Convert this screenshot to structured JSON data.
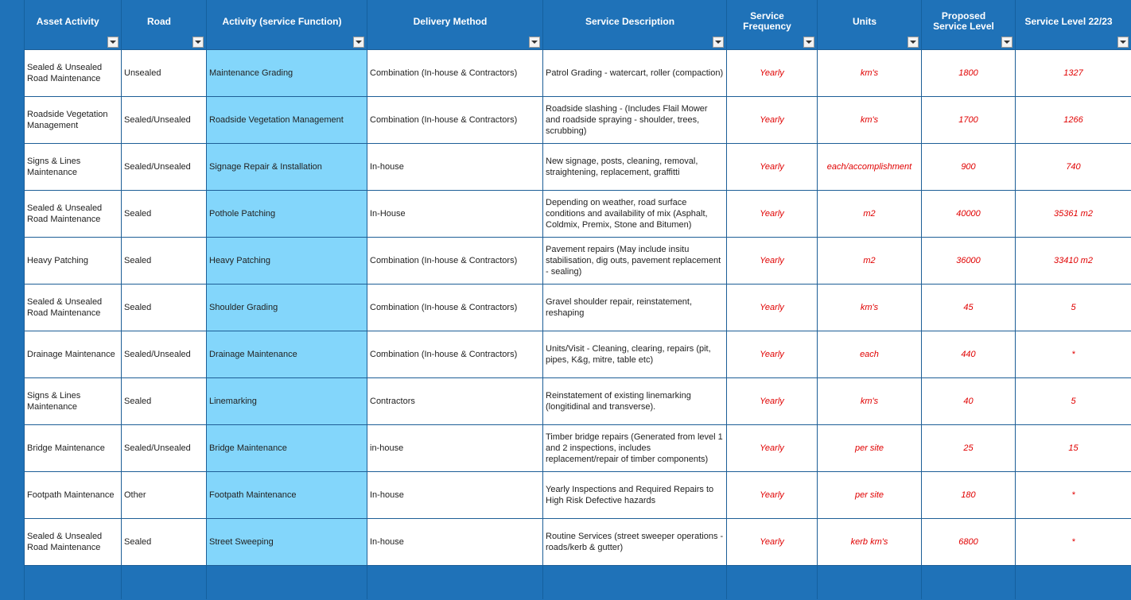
{
  "headers": [
    "Asset Activity",
    "Road",
    "Activity (service Function)",
    "Delivery Method",
    "Service Description",
    "Service Frequency",
    "Units",
    "Proposed Service Level",
    "Service Level 22/23"
  ],
  "rows": [
    {
      "asset": "Sealed & Unsealed Road Maintenance",
      "road": "Unsealed",
      "activity": "Maintenance Grading",
      "delivery": "Combination (In-house & Contractors)",
      "description": "Patrol Grading - watercart, roller (compaction)",
      "frequency": "Yearly",
      "units": "km's",
      "proposed": "1800",
      "level": "1327"
    },
    {
      "asset": "Roadside Vegetation Management",
      "road": "Sealed/Unsealed",
      "activity": "Roadside Vegetation Management",
      "delivery": "Combination (In-house & Contractors)",
      "description": "Roadside slashing - (Includes Flail Mower and roadside spraying - shoulder, trees, scrubbing)",
      "frequency": "Yearly",
      "units": "km's",
      "proposed": "1700",
      "level": "1266"
    },
    {
      "asset": "Signs & Lines Maintenance",
      "road": "Sealed/Unsealed",
      "activity": "Signage Repair & Installation",
      "delivery": "In-house",
      "description": "New signage, posts, cleaning, removal, straightening, replacement, graffitti",
      "frequency": "Yearly",
      "units": "each/accomplishment",
      "proposed": "900",
      "level": "740"
    },
    {
      "asset": "Sealed & Unsealed Road Maintenance",
      "road": "Sealed",
      "activity": "Pothole Patching",
      "delivery": "In-House",
      "description": "Depending on weather, road surface conditions and availability of mix (Asphalt, Coldmix, Premix, Stone and Bitumen)",
      "frequency": "Yearly",
      "units": "m2",
      "proposed": "40000",
      "level": "35361 m2"
    },
    {
      "asset": "Heavy Patching",
      "road": "Sealed",
      "activity": "Heavy Patching",
      "delivery": "Combination (In-house & Contractors)",
      "description": "Pavement repairs (May include insitu stabilisation, dig outs, pavement replacement - sealing)",
      "frequency": "Yearly",
      "units": "m2",
      "proposed": "36000",
      "level": "33410 m2"
    },
    {
      "asset": "Sealed & Unsealed Road Maintenance",
      "road": "Sealed",
      "activity": "Shoulder Grading",
      "delivery": "Combination (In-house & Contractors)",
      "description": "Gravel shoulder repair, reinstatement, reshaping",
      "frequency": "Yearly",
      "units": "km's",
      "proposed": "45",
      "level": "5"
    },
    {
      "asset": "Drainage Maintenance",
      "road": "Sealed/Unsealed",
      "activity": "Drainage Maintenance",
      "delivery": "Combination (In-house & Contractors)",
      "description": "Units/Visit - Cleaning, clearing, repairs (pit, pipes, K&g, mitre, table etc)",
      "frequency": "Yearly",
      "units": "each",
      "proposed": "440",
      "level": "*"
    },
    {
      "asset": "Signs & Lines Maintenance",
      "road": "Sealed",
      "activity": "Linemarking",
      "delivery": "Contractors",
      "description": "Reinstatement of existing linemarking (longitidinal and transverse).",
      "frequency": "Yearly",
      "units": "km's",
      "proposed": "40",
      "level": "5"
    },
    {
      "asset": "Bridge Maintenance",
      "road": "Sealed/Unsealed",
      "activity": "Bridge Maintenance",
      "delivery": "in-house",
      "description": "Timber bridge repairs (Generated from level 1 and 2 inspections, includes replacement/repair of timber components)",
      "frequency": "Yearly",
      "units": "per site",
      "proposed": "25",
      "level": "15"
    },
    {
      "asset": "Footpath Maintenance",
      "road": "Other",
      "activity": "Footpath Maintenance",
      "delivery": "In-house",
      "description": "Yearly Inspections and Required Repairs to High Risk Defective hazards",
      "frequency": "Yearly",
      "units": "per site",
      "proposed": "180",
      "level": "*"
    },
    {
      "asset": "Sealed & Unsealed Road Maintenance",
      "road": "Sealed",
      "activity": "Street Sweeping",
      "delivery": "In-house",
      "description": "Routine Services (street sweeper operations - roads/kerb & gutter)",
      "frequency": "Yearly",
      "units": "kerb km's",
      "proposed": "6800",
      "level": "*"
    }
  ]
}
